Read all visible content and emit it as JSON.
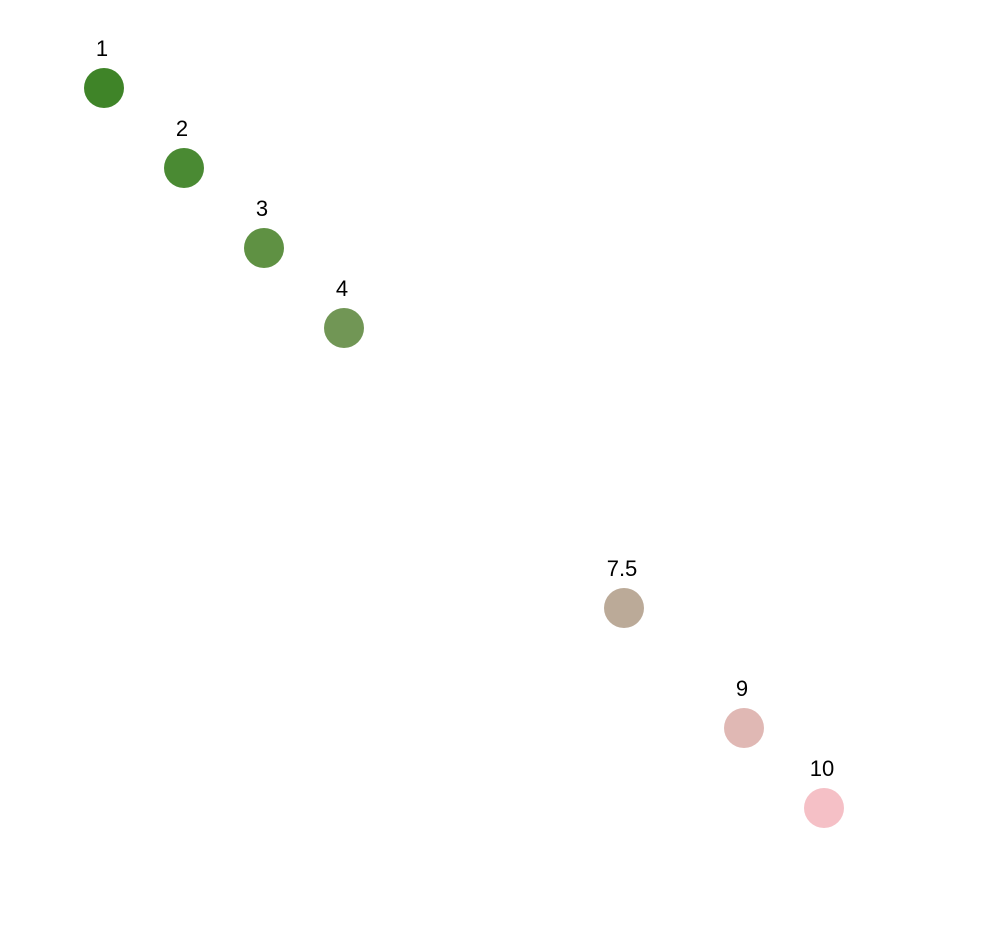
{
  "chart_data": {
    "type": "scatter",
    "title": "",
    "xlabel": "",
    "ylabel": "",
    "grid": false,
    "points": [
      {
        "x": 1,
        "y": 1,
        "label": "1",
        "color": "#3f8428"
      },
      {
        "x": 2,
        "y": 2,
        "label": "2",
        "color": "#4a8a33"
      },
      {
        "x": 3,
        "y": 3,
        "label": "3",
        "color": "#5f9143"
      },
      {
        "x": 4,
        "y": 4,
        "label": "4",
        "color": "#719655"
      },
      {
        "x": 7.5,
        "y": 7.5,
        "label": "7.5",
        "color": "#bbaa98"
      },
      {
        "x": 9,
        "y": 9,
        "label": "9",
        "color": "#e0b8b4"
      },
      {
        "x": 10,
        "y": 10,
        "label": "10",
        "color": "#f5c0c6"
      }
    ]
  }
}
